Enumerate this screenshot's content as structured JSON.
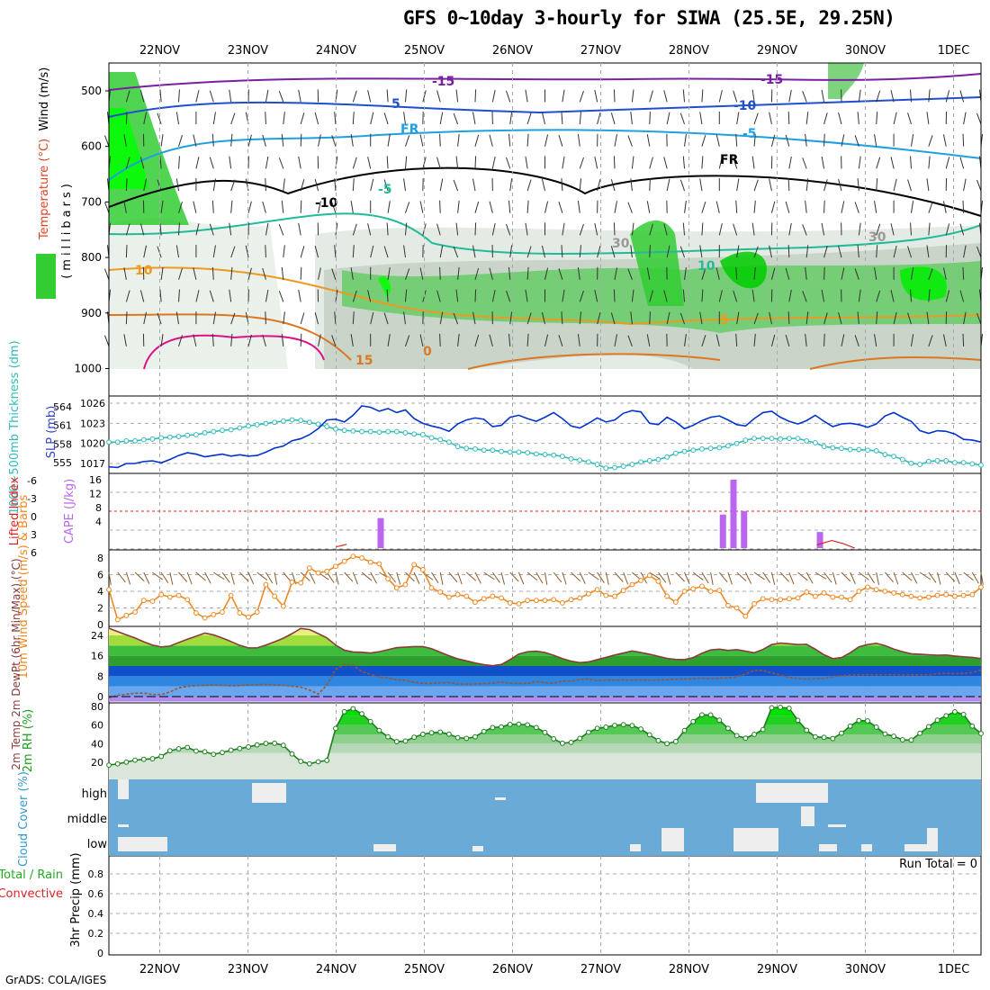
{
  "title": "GFS 0~10day 3-hourly for SIWA (25.5E, 29.25N)",
  "footer": "GrADS: COLA/IGES",
  "run_total": "Run Total = 0",
  "date_labels": [
    "22NOV",
    "23NOV",
    "24NOV",
    "25NOV",
    "26NOV",
    "27NOV",
    "28NOV",
    "29NOV",
    "30NOV",
    "1DEC"
  ],
  "colors": {
    "rh_green": "#33cc33",
    "bright_green": "#00ff00",
    "slp": "#0033cc",
    "thickness": "#33bbbb",
    "lifted": "#dd2222",
    "cape": "#bb66ee",
    "wind_speed": "#ee8822",
    "cloud_blue": "#6aaad6",
    "temp_line": "#8b3a3a",
    "dewpt_line": "#a0522d"
  },
  "chart_data": [
    {
      "type": "heatmap",
      "panel": "upper-air",
      "ylabel_parts": [
        "Wind (m/s)",
        "Temperature (°C)",
        "(millibars)",
        "RH (%)"
      ],
      "y_ticks": [
        500,
        600,
        700,
        800,
        900,
        1000
      ],
      "ylim": [
        450,
        1000
      ],
      "isotherm_labels": [
        "-15",
        "-10",
        "-5",
        "FR",
        "5",
        "10",
        "15",
        "0",
        "5",
        "10",
        "-5",
        "-10",
        "-15",
        "FR",
        "30",
        "30"
      ],
      "rh_shading": "green shades for high RH, grey for moderate"
    },
    {
      "type": "line",
      "panel": "slp-thickness",
      "ylabel_left": "1000~500mb Thickness (dm)",
      "ylabel_right": "SLP (mb)",
      "left_ticks": [
        555,
        558,
        561,
        564
      ],
      "right_ticks": [
        1017,
        1020,
        1023,
        1026
      ],
      "series": [
        {
          "name": "SLP (mb)",
          "axis": "right",
          "values": [
            1016.5,
            1016.4,
            1017.0,
            1017.0,
            1017.3,
            1017.4,
            1017.1,
            1017.6,
            1018.2,
            1018.6,
            1018.4,
            1018.0,
            1018.2,
            1018.4,
            1018.1,
            1018.3,
            1018.1,
            1018.2,
            1018.7,
            1019.3,
            1019.6,
            1020.4,
            1020.7,
            1021.3,
            1022.2,
            1023.5,
            1023.6,
            1023.2,
            1024.2,
            1025.6,
            1025.4,
            1024.8,
            1025.2,
            1024.6,
            1025.0,
            1023.7,
            1023.0,
            1022.6,
            1022.3,
            1021.8,
            1022.9,
            1023.5,
            1023.8,
            1023.6,
            1022.5,
            1022.7,
            1023.9,
            1024.2,
            1023.7,
            1023.3,
            1023.9,
            1024.6,
            1023.7,
            1022.6,
            1022.3,
            1023.0,
            1023.8,
            1023.2,
            1023.5,
            1024.5,
            1024.9,
            1024.7,
            1023.0,
            1022.8,
            1023.9,
            1023.2,
            1022.2,
            1022.7,
            1023.4,
            1023.9,
            1024.1,
            1023.5,
            1022.8,
            1022.6,
            1023.7,
            1024.6,
            1024.8,
            1023.9,
            1023.3,
            1022.9,
            1023.4,
            1024.2,
            1023.3,
            1022.5,
            1022.9,
            1023.0,
            1022.8,
            1022.4,
            1022.9,
            1024.1,
            1024.6,
            1023.9,
            1023.3,
            1021.9,
            1021.5,
            1021.9,
            1021.8,
            1021.4,
            1020.6,
            1020.5,
            1020.2
          ]
        },
        {
          "name": "1000~500mb Thickness (dm)",
          "axis": "left",
          "values": [
            558.3,
            558.3,
            558.5,
            558.5,
            558.7,
            558.8,
            559.0,
            559.1,
            559.2,
            559.4,
            559.5,
            559.8,
            560.0,
            560.2,
            560.3,
            560.6,
            560.9,
            561.1,
            561.3,
            561.5,
            561.7,
            561.9,
            561.8,
            561.5,
            561.2,
            560.8,
            560.4,
            560.2,
            560.1,
            560.0,
            560.0,
            559.9,
            560.0,
            560.0,
            559.8,
            559.6,
            559.5,
            559.0,
            558.7,
            558.3,
            557.6,
            557.3,
            557.2,
            557.0,
            557.0,
            556.8,
            556.7,
            556.7,
            556.6,
            556.4,
            556.3,
            556.2,
            556.0,
            555.6,
            555.4,
            555.1,
            554.7,
            554.1,
            554.2,
            554.4,
            554.7,
            555.1,
            555.3,
            555.5,
            555.9,
            556.5,
            556.8,
            557.0,
            557.2,
            557.3,
            557.4,
            557.7,
            558.1,
            558.6,
            558.9,
            558.9,
            558.9,
            558.8,
            558.9,
            558.9,
            558.5,
            558.2,
            557.6,
            557.4,
            557.3,
            557.1,
            557.1,
            557.0,
            556.9,
            556.3,
            556.0,
            555.5,
            554.9,
            554.7,
            555.2,
            555.3,
            555.3,
            555.0,
            555.0,
            554.8,
            554.6
          ]
        }
      ]
    },
    {
      "type": "bar",
      "panel": "lifted-cape",
      "ylabel_left": "Lifted Index",
      "ylabel_right": "CAPE (J/kg)",
      "left_ticks": [
        "-6",
        "-3",
        "0",
        "3",
        "6"
      ],
      "right_ticks": [
        4,
        8,
        12,
        16
      ],
      "cape_bars": [
        {
          "t": 24.5,
          "value": 5
        },
        {
          "t": 28.38,
          "value": 6
        },
        {
          "t": 28.5,
          "value": 16
        },
        {
          "t": 28.62,
          "value": 7
        },
        {
          "t": 29.48,
          "value": 1
        }
      ],
      "lifted_segments": [
        {
          "t": [
            24.0,
            24.12
          ],
          "values": [
            5.8,
            5.4
          ]
        },
        {
          "t": [
            29.45,
            29.62,
            29.75,
            29.88
          ],
          "values": [
            5.5,
            4.8,
            5.3,
            6.0
          ]
        }
      ]
    },
    {
      "type": "line",
      "panel": "10m-wind",
      "ylabel": "10m Wind Speed (m/s) & Barbs",
      "y_ticks": [
        0,
        2,
        4,
        6,
        8
      ],
      "series": [
        {
          "name": "10m Wind Speed",
          "values": [
            4.2,
            0.6,
            1.1,
            1.5,
            2.9,
            2.8,
            3.6,
            3.3,
            3.5,
            3.0,
            1.4,
            0.8,
            1.2,
            1.5,
            3.5,
            1.4,
            0.9,
            1.5,
            4.8,
            3.4,
            2.2,
            5.1,
            5.0,
            6.8,
            6.2,
            6.4,
            7.0,
            7.6,
            8.2,
            8.0,
            7.5,
            7.3,
            5.5,
            4.4,
            4.8,
            7.2,
            6.6,
            4.4,
            3.9,
            3.3,
            3.6,
            3.4,
            2.7,
            3.1,
            3.4,
            3.2,
            2.6,
            2.5,
            2.9,
            2.9,
            2.9,
            3.0,
            2.6,
            3.0,
            3.2,
            3.7,
            4.2,
            3.5,
            3.4,
            4.1,
            4.8,
            5.3,
            5.9,
            5.2,
            3.4,
            2.7,
            4.0,
            4.3,
            4.6,
            4.0,
            4.1,
            2.3,
            2.0,
            1.0,
            2.5,
            3.1,
            3.0,
            3.0,
            3.1,
            3.2,
            3.9,
            3.4,
            3.8,
            3.3,
            3.3,
            3.0,
            4.0,
            4.5,
            4.2,
            4.0,
            3.8,
            3.6,
            3.4,
            3.2,
            3.3,
            3.5,
            3.6,
            3.4,
            3.5,
            3.6,
            4.5
          ]
        }
      ]
    },
    {
      "type": "line",
      "panel": "2m-temp",
      "ylabel": "2m Temp 2m DewPt (6hr Min/Max) (°C)",
      "y_ticks": [
        0,
        8,
        16,
        24
      ],
      "series": [
        {
          "name": "2m Temp",
          "values": [
            26.8,
            25.5,
            24.2,
            23.0,
            21.5,
            20.2,
            19.5,
            19.8,
            21.2,
            22.5,
            23.7,
            24.9,
            24.2,
            23.0,
            21.6,
            20.1,
            19.1,
            19.1,
            20.2,
            21.5,
            22.9,
            24.7,
            26.7,
            26.3,
            24.7,
            23.0,
            20.2,
            18.2,
            17.5,
            17.4,
            17.1,
            17.6,
            18.4,
            19.2,
            19.4,
            19.6,
            19.6,
            18.8,
            17.4,
            16.0,
            14.8,
            14.0,
            13.2,
            12.5,
            12.1,
            12.6,
            14.5,
            16.7,
            17.6,
            17.8,
            17.3,
            16.2,
            14.9,
            13.9,
            13.3,
            13.6,
            14.5,
            15.4,
            16.3,
            17.1,
            17.9,
            17.3,
            16.6,
            15.8,
            15.0,
            14.6,
            14.5,
            15.3,
            17.0,
            18.3,
            18.6,
            18.1,
            18.4,
            17.8,
            17.2,
            18.5,
            20.4,
            21.0,
            20.7,
            20.4,
            20.5,
            18.6,
            16.4,
            14.9,
            15.3,
            17.2,
            19.5,
            20.4,
            20.9,
            20.0,
            18.6,
            17.6,
            16.8,
            16.6,
            16.4,
            16.2,
            16.3,
            15.9,
            15.6,
            15.4,
            14.9
          ]
        },
        {
          "name": "2m DewPt",
          "values": [
            -0.5,
            0.5,
            0.9,
            1.3,
            1.4,
            0.8,
            0.8,
            1.8,
            3.4,
            4.0,
            4.3,
            4.4,
            4.6,
            4.4,
            4.2,
            4.3,
            4.6,
            4.7,
            4.8,
            4.7,
            4.4,
            4.1,
            3.7,
            2.6,
            1.0,
            4.5,
            10.7,
            12.6,
            12.4,
            9.8,
            8.7,
            7.7,
            7.3,
            6.6,
            6.4,
            5.6,
            5.2,
            5.2,
            5.4,
            5.5,
            4.9,
            4.9,
            4.9,
            5.1,
            5.3,
            5.8,
            5.2,
            5.2,
            5.1,
            6.0,
            5.5,
            5.2,
            6.1,
            6.1,
            6.7,
            6.9,
            6.2,
            6.6,
            6.4,
            6.6,
            6.4,
            6.6,
            6.4,
            6.5,
            6.6,
            6.9,
            6.9,
            7.0,
            7.2,
            7.0,
            7.2,
            7.3,
            7.8,
            8.9,
            10.3,
            10.3,
            9.3,
            8.4,
            7.5,
            7.1,
            6.8,
            7.0,
            7.1,
            7.8,
            8.2,
            8.4,
            8.5,
            8.6,
            8.5,
            8.6,
            8.6,
            8.5,
            8.5,
            8.5,
            8.6,
            9.0,
            9.1,
            9.0,
            9.1,
            9.4,
            10.4
          ]
        }
      ]
    },
    {
      "type": "area",
      "panel": "2m-rh",
      "ylabel": "2m RH (%)",
      "y_ticks": [
        20,
        40,
        60,
        80
      ],
      "series": [
        {
          "name": "2m RH",
          "values": [
            17.0,
            18.3,
            20.2,
            22.3,
            23.2,
            23.8,
            26.3,
            32.4,
            34.5,
            36.0,
            32.1,
            31.3,
            28.6,
            30.5,
            33.0,
            34.8,
            36.5,
            38.7,
            40.3,
            40.5,
            38.3,
            29.0,
            21.0,
            18.4,
            20.6,
            22.0,
            56.4,
            74.4,
            77.6,
            72.1,
            63.8,
            54.2,
            47.4,
            42.2,
            42.8,
            47.0,
            50.1,
            51.8,
            52.5,
            50.2,
            46.5,
            45.7,
            47.4,
            53.2,
            57.3,
            58.1,
            60.8,
            61.0,
            60.3,
            57.4,
            52.1,
            45.2,
            40.5,
            41.4,
            45.7,
            52.3,
            56.5,
            57.8,
            59.7,
            60.5,
            59.5,
            55.8,
            49.6,
            43.4,
            40.1,
            42.3,
            54.2,
            63.8,
            71.0,
            70.9,
            65.3,
            56.5,
            48.6,
            45.9,
            50.0,
            55.2,
            78.6,
            79.1,
            78.1,
            65.1,
            54.5,
            47.4,
            46.8,
            45.5,
            51.3,
            58.9,
            64.9,
            64.5,
            57.8,
            50.4,
            48.0,
            44.2,
            43.9,
            51.2,
            58.3,
            65.3,
            70.0,
            74.3,
            71.4,
            58.9,
            51.0
          ]
        }
      ]
    },
    {
      "type": "heatmap",
      "panel": "cloud-cover",
      "ylabel": "Cloud Cover (%)",
      "row_labels": [
        "high",
        "middle",
        "low"
      ]
    },
    {
      "type": "bar",
      "panel": "3hr-precip",
      "ylabel_parts": [
        "3hr Precip (mm)",
        "Total / Rain",
        "Convective"
      ],
      "y_ticks": [
        0,
        0.2,
        0.4,
        0.6,
        0.8
      ],
      "values": []
    }
  ]
}
